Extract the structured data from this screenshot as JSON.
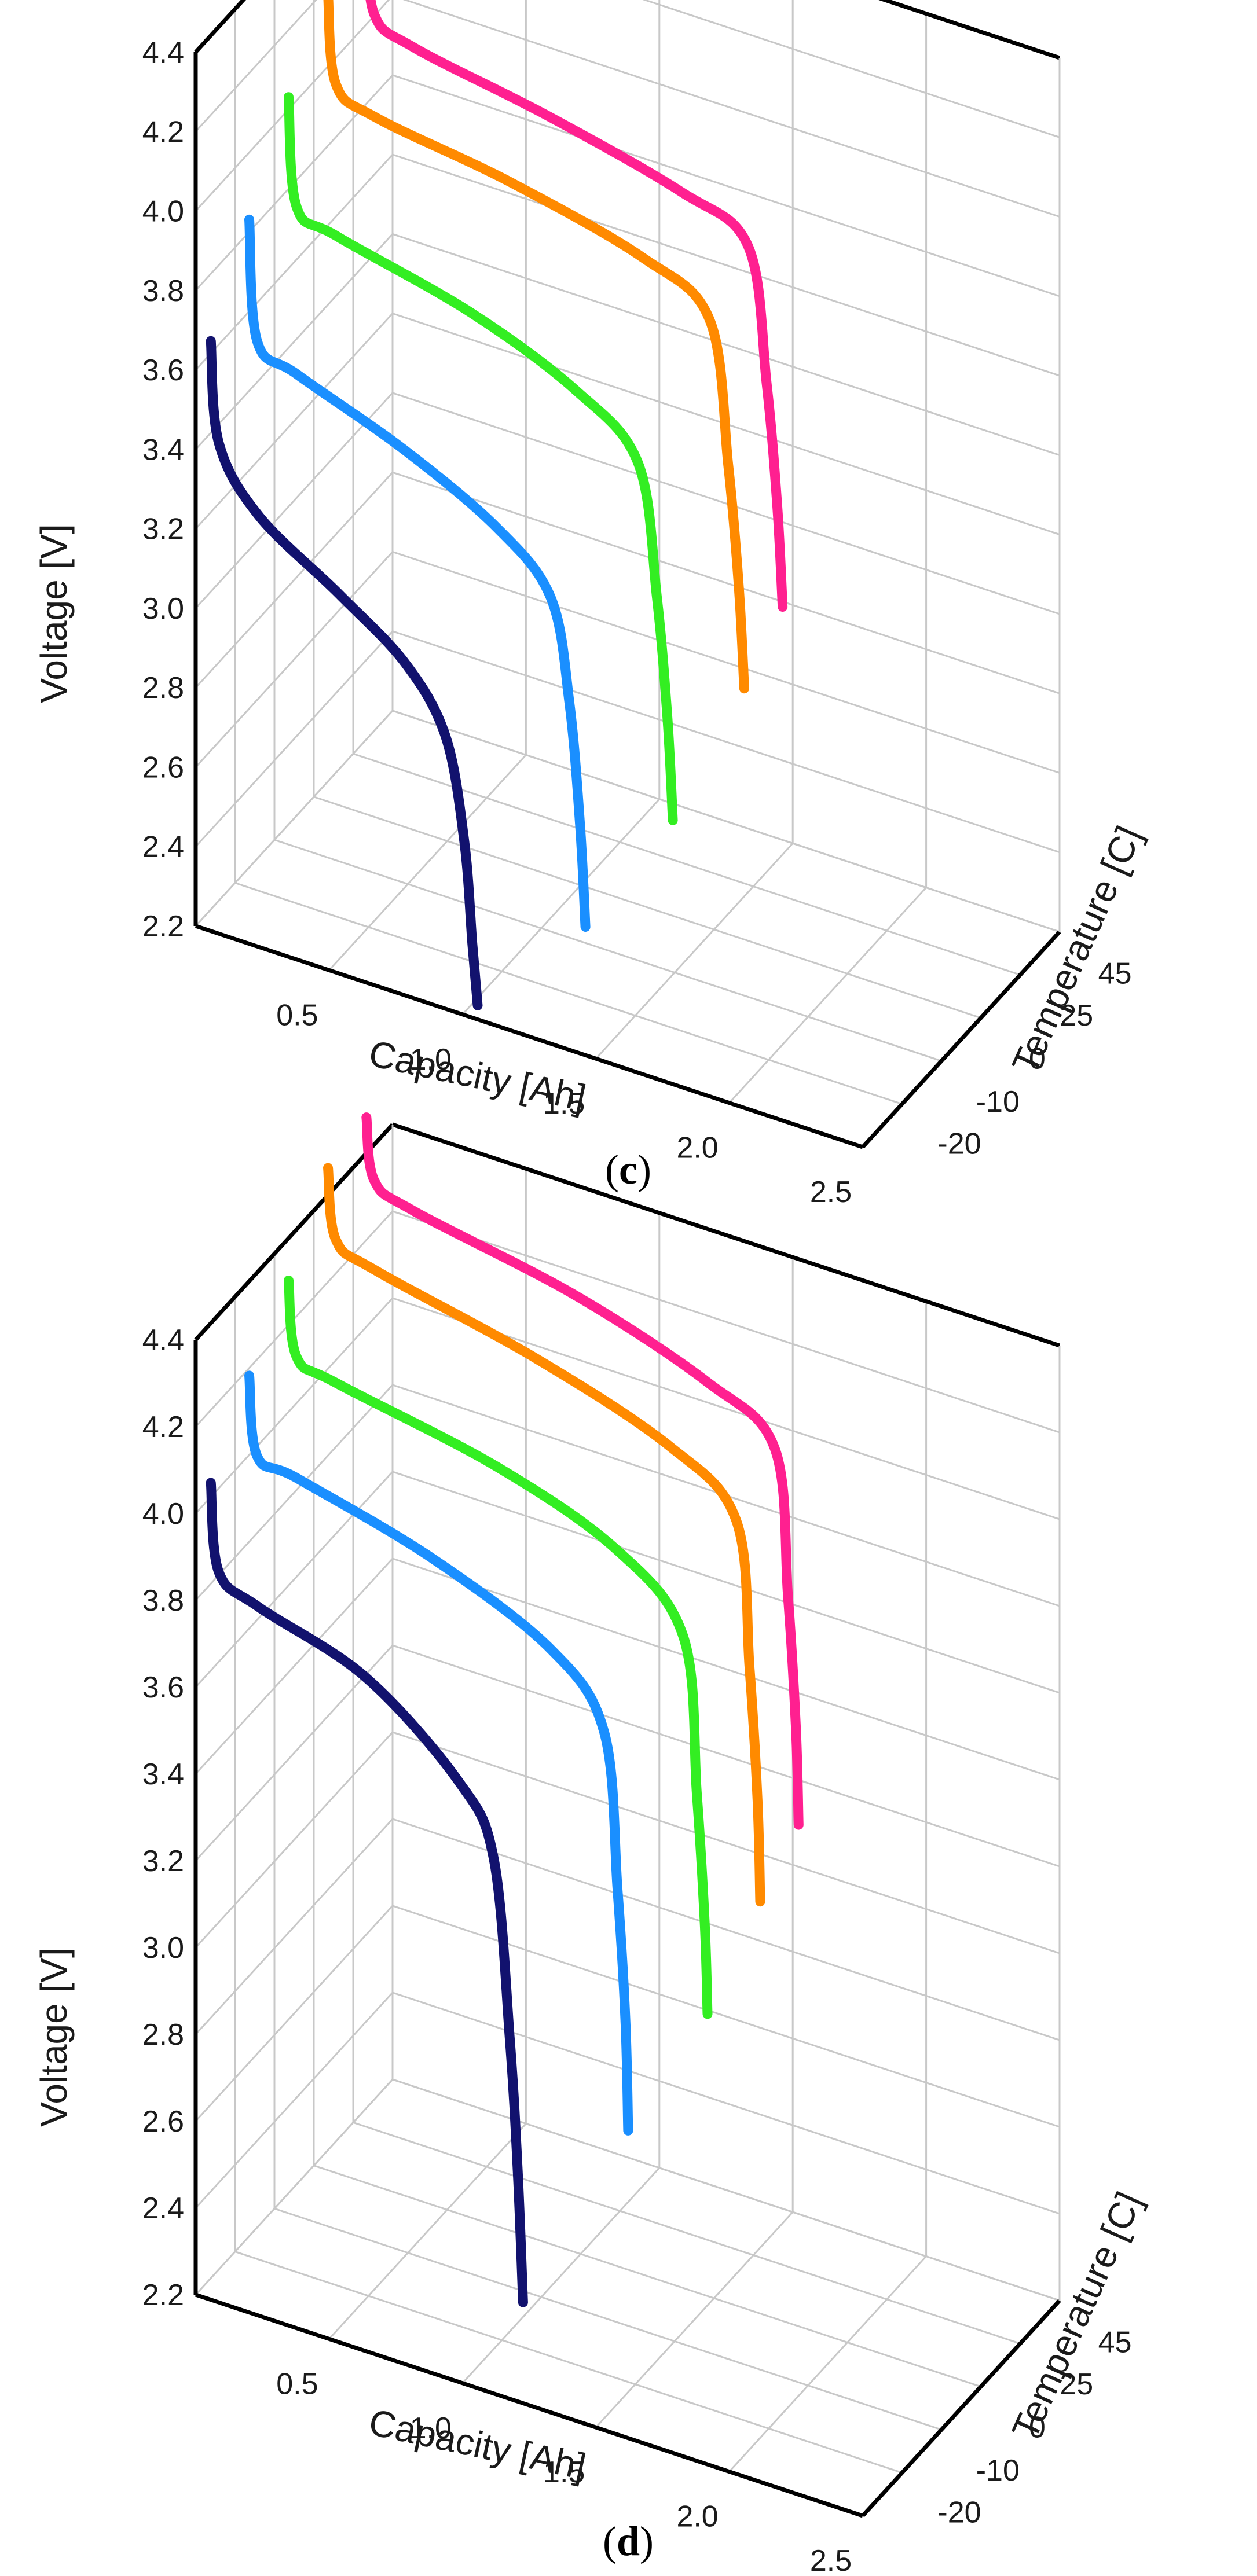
{
  "chart_data": [
    {
      "panel": "c",
      "type": "line",
      "xlabel": "Capacity [Ah]",
      "ylabel": "Temperature [C]",
      "zlabel": "Voltage [V]",
      "x_ticks": [
        "0.5",
        "1.0",
        "1.5",
        "2.0",
        "2.5"
      ],
      "y_ticks": [
        "-20",
        "-10",
        "0",
        "25",
        "45"
      ],
      "z_ticks": [
        "2.2",
        "2.4",
        "2.6",
        "2.8",
        "3.0",
        "3.2",
        "3.4",
        "3.6",
        "3.8",
        "4.0",
        "4.2",
        "4.4"
      ],
      "xlim": [
        0,
        2.5
      ],
      "zlim": [
        2.2,
        4.4
      ],
      "series": [
        {
          "name": "-20",
          "color": "#12126e",
          "x": [
            0.02,
            0.05,
            0.2,
            0.5,
            0.75,
            0.9,
            0.97,
            1.0,
            1.02
          ],
          "z": [
            3.65,
            3.4,
            3.25,
            3.12,
            3.0,
            2.85,
            2.6,
            2.35,
            2.2
          ]
        },
        {
          "name": "-10",
          "color": "#1a8fff",
          "x": [
            0.02,
            0.05,
            0.2,
            0.6,
            0.95,
            1.15,
            1.22,
            1.26,
            1.28
          ],
          "z": [
            3.85,
            3.55,
            3.5,
            3.4,
            3.28,
            3.15,
            2.9,
            2.6,
            2.35
          ]
        },
        {
          "name": "0",
          "color": "#33ee22",
          "x": [
            0.02,
            0.05,
            0.2,
            0.7,
            1.1,
            1.33,
            1.4,
            1.44,
            1.46
          ],
          "z": [
            4.05,
            3.78,
            3.74,
            3.66,
            3.55,
            3.42,
            3.1,
            2.8,
            2.55
          ]
        },
        {
          "name": "25",
          "color": "#ff8a00",
          "x": [
            0.02,
            0.05,
            0.2,
            0.7,
            1.2,
            1.45,
            1.52,
            1.56,
            1.58
          ],
          "z": [
            4.2,
            3.98,
            3.93,
            3.88,
            3.8,
            3.7,
            3.35,
            3.05,
            2.8
          ]
        },
        {
          "name": "45",
          "color": "#ff2090",
          "x": [
            0.02,
            0.05,
            0.2,
            0.7,
            1.2,
            1.45,
            1.52,
            1.56,
            1.58
          ],
          "z": [
            4.25,
            4.05,
            4.0,
            3.94,
            3.86,
            3.78,
            3.45,
            3.15,
            2.9
          ]
        }
      ]
    },
    {
      "panel": "d",
      "type": "line",
      "xlabel": "Capacity [Ah]",
      "ylabel": "Temperature [C]",
      "zlabel": "Voltage [V]",
      "x_ticks": [
        "0.5",
        "1.0",
        "1.5",
        "2.0",
        "2.5"
      ],
      "y_ticks": [
        "-20",
        "-10",
        "0",
        "25",
        "45"
      ],
      "z_ticks": [
        "2.2",
        "2.4",
        "2.6",
        "2.8",
        "3.0",
        "3.2",
        "3.4",
        "3.6",
        "3.8",
        "4.0",
        "4.2",
        "4.4"
      ],
      "xlim": [
        0,
        2.5
      ],
      "zlim": [
        2.2,
        4.4
      ],
      "series": [
        {
          "name": "-20",
          "color": "#12126e",
          "x": [
            0.02,
            0.05,
            0.2,
            0.6,
            0.95,
            1.08,
            1.14,
            1.17,
            1.19
          ],
          "z": [
            4.05,
            3.85,
            3.8,
            3.72,
            3.55,
            3.4,
            3.0,
            2.7,
            2.4
          ]
        },
        {
          "name": "-10",
          "color": "#1a8fff",
          "x": [
            0.02,
            0.05,
            0.2,
            0.7,
            1.15,
            1.35,
            1.4,
            1.43,
            1.44
          ],
          "z": [
            4.2,
            4.02,
            4.0,
            3.92,
            3.8,
            3.65,
            3.3,
            3.0,
            2.75
          ]
        },
        {
          "name": "0",
          "color": "#33ee22",
          "x": [
            0.02,
            0.05,
            0.2,
            0.8,
            1.25,
            1.5,
            1.55,
            1.58,
            1.59
          ],
          "z": [
            4.32,
            4.15,
            4.12,
            4.05,
            3.95,
            3.8,
            3.45,
            3.15,
            2.95
          ]
        },
        {
          "name": "25",
          "color": "#ff8a00",
          "x": [
            0.02,
            0.05,
            0.2,
            0.8,
            1.3,
            1.55,
            1.6,
            1.63,
            1.64
          ],
          "z": [
            4.48,
            4.32,
            4.28,
            4.2,
            4.1,
            3.98,
            3.65,
            3.35,
            3.12
          ]
        },
        {
          "name": "45",
          "color": "#ff2090",
          "x": [
            0.02,
            0.05,
            0.2,
            0.8,
            1.3,
            1.55,
            1.6,
            1.63,
            1.64
          ],
          "z": [
            4.5,
            4.36,
            4.32,
            4.25,
            4.15,
            4.05,
            3.72,
            3.42,
            3.2
          ]
        }
      ]
    }
  ],
  "panel_labels": {
    "c": {
      "open": "(",
      "letter": "c",
      "close": ")"
    },
    "d": {
      "open": "(",
      "letter": "d",
      "close": ")"
    }
  }
}
